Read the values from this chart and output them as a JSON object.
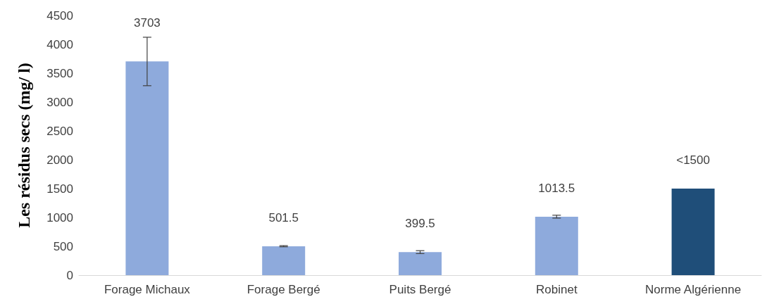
{
  "chart_data": {
    "type": "bar",
    "ylabel": "Les résidus secs (mg/ l)",
    "categories": [
      "Forage Michaux",
      "Forage Bergé",
      "Puits Bergé",
      "Robinet",
      "Norme Algérienne"
    ],
    "values": [
      3703,
      501.5,
      399.5,
      1013.5,
      1500
    ],
    "colors": [
      "#8eaadc",
      "#8eaadc",
      "#8eaadc",
      "#8eaadc",
      "#1f4e79"
    ],
    "errors": [
      420,
      10,
      25,
      25,
      null
    ],
    "value_labels": [
      "3703",
      "501.5",
      "399.5",
      "1013.5",
      "<1500"
    ],
    "ylim": [
      0,
      4500
    ],
    "yticks": [
      0,
      500,
      1000,
      1500,
      2000,
      2500,
      3000,
      3500,
      4000,
      4500
    ],
    "grid": false
  }
}
